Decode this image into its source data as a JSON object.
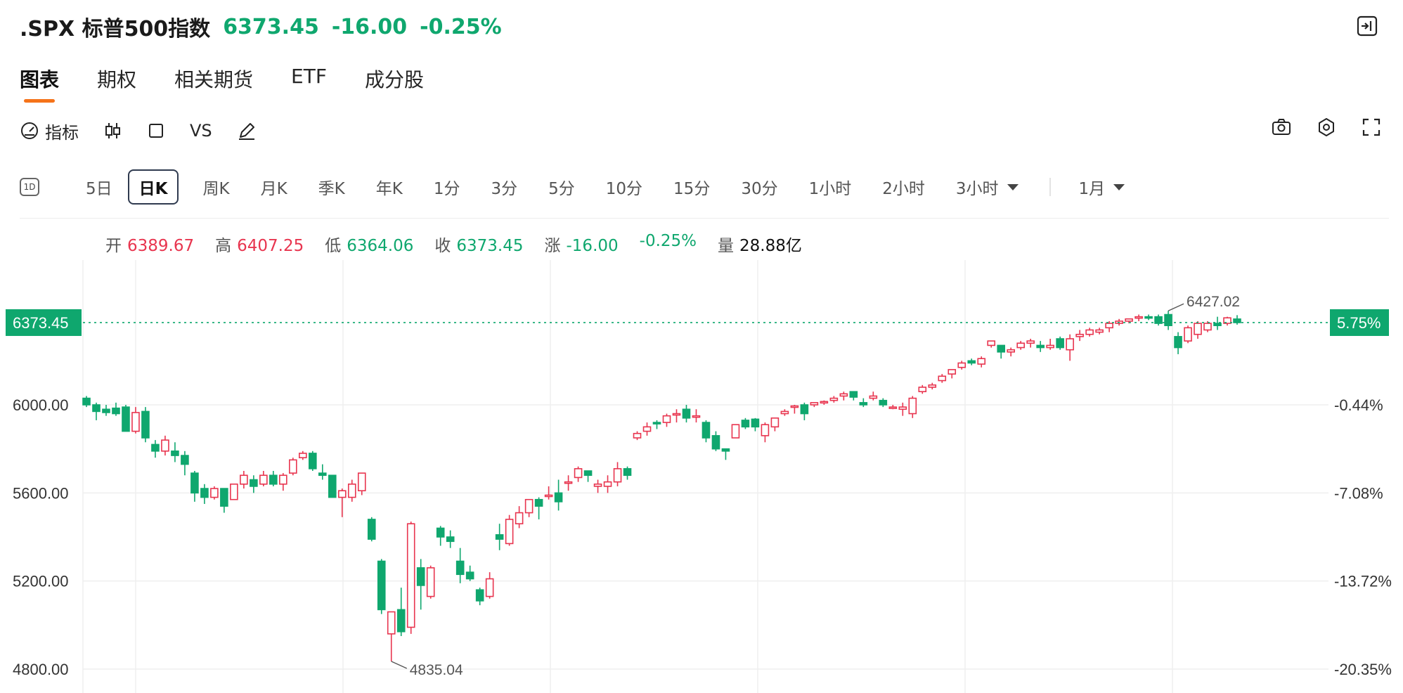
{
  "header": {
    "title": ".SPX 标普500指数",
    "price": "6373.45",
    "change": "-16.00",
    "change_pct": "-0.25%"
  },
  "tabs": [
    {
      "label": "图表",
      "active": true
    },
    {
      "label": "期权",
      "active": false
    },
    {
      "label": "相关期货",
      "active": false
    },
    {
      "label": "ETF",
      "active": false
    },
    {
      "label": "成分股",
      "active": false
    }
  ],
  "toolbar": {
    "indicator_label": "指标",
    "vs_label": "VS"
  },
  "periods": {
    "icon_label": "1D",
    "items": [
      "5日",
      "日K",
      "周K",
      "月K",
      "季K",
      "年K",
      "1分",
      "3分",
      "5分",
      "10分",
      "15分",
      "30分",
      "1小时",
      "2小时",
      "3小时"
    ],
    "active": "日K",
    "range_label": "1月"
  },
  "ohlc": {
    "open_label": "开",
    "open": "6389.67",
    "high_label": "高",
    "high": "6407.25",
    "low_label": "低",
    "low": "6364.06",
    "close_label": "收",
    "close": "6373.45",
    "chg_label": "涨",
    "chg": "-16.00",
    "chg_pct": "-0.25%",
    "vol_label": "量",
    "vol": "28.88亿"
  },
  "colors": {
    "up": "#e8354f",
    "down": "#0fa76e",
    "accent": "#f5731a"
  },
  "chart_data": {
    "type": "candlestick",
    "y_ticks": [
      6000,
      5600,
      5200,
      4800
    ],
    "y_tick_labels": [
      "6000.00",
      "5600.00",
      "5200.00",
      "4800.00"
    ],
    "right_tick_labels": [
      "-0.44%",
      "-7.08%",
      "-13.72%",
      "-20.35%"
    ],
    "current_price_label": "6373.45",
    "current_pct_label": "5.75%",
    "high_marker": "6427.02",
    "low_marker": "4835.04",
    "ylim": [
      4760,
      6520
    ],
    "candles": [
      [
        6030,
        6040,
        5990,
        6000
      ],
      [
        6000,
        6010,
        5930,
        5970
      ],
      [
        5980,
        6000,
        5950,
        5965
      ],
      [
        5985,
        6010,
        5950,
        5960
      ],
      [
        5990,
        6000,
        5880,
        5880
      ],
      [
        5880,
        5990,
        5870,
        5965
      ],
      [
        5970,
        5990,
        5830,
        5850
      ],
      [
        5820,
        5840,
        5760,
        5790
      ],
      [
        5790,
        5860,
        5770,
        5840
      ],
      [
        5790,
        5830,
        5740,
        5770
      ],
      [
        5770,
        5790,
        5680,
        5730
      ],
      [
        5690,
        5700,
        5560,
        5600
      ],
      [
        5620,
        5640,
        5550,
        5580
      ],
      [
        5580,
        5630,
        5570,
        5620
      ],
      [
        5620,
        5620,
        5510,
        5540
      ],
      [
        5570,
        5640,
        5570,
        5640
      ],
      [
        5640,
        5700,
        5620,
        5680
      ],
      [
        5660,
        5680,
        5600,
        5630
      ],
      [
        5640,
        5700,
        5630,
        5680
      ],
      [
        5680,
        5700,
        5630,
        5640
      ],
      [
        5640,
        5690,
        5610,
        5680
      ],
      [
        5690,
        5760,
        5680,
        5750
      ],
      [
        5760,
        5790,
        5750,
        5780
      ],
      [
        5780,
        5790,
        5700,
        5710
      ],
      [
        5690,
        5730,
        5660,
        5680
      ],
      [
        5680,
        5680,
        5580,
        5580
      ],
      [
        5580,
        5620,
        5490,
        5610
      ],
      [
        5580,
        5660,
        5560,
        5640
      ],
      [
        5610,
        5690,
        5590,
        5690
      ],
      [
        5480,
        5490,
        5380,
        5390
      ],
      [
        5290,
        5300,
        5050,
        5070
      ],
      [
        4960,
        5060,
        4835,
        5060
      ],
      [
        5070,
        5170,
        4950,
        4970
      ],
      [
        4990,
        5470,
        4960,
        5460
      ],
      [
        5260,
        5300,
        5070,
        5180
      ],
      [
        5130,
        5270,
        5120,
        5260
      ],
      [
        5440,
        5450,
        5360,
        5400
      ],
      [
        5400,
        5430,
        5350,
        5380
      ],
      [
        5290,
        5350,
        5190,
        5230
      ],
      [
        5240,
        5270,
        5200,
        5210
      ],
      [
        5160,
        5170,
        5090,
        5110
      ],
      [
        5130,
        5240,
        5120,
        5210
      ],
      [
        5410,
        5460,
        5340,
        5390
      ],
      [
        5370,
        5500,
        5360,
        5480
      ],
      [
        5460,
        5540,
        5440,
        5510
      ],
      [
        5510,
        5570,
        5490,
        5570
      ],
      [
        5570,
        5580,
        5480,
        5540
      ],
      [
        5590,
        5630,
        5570,
        5590
      ],
      [
        5600,
        5660,
        5520,
        5560
      ],
      [
        5650,
        5680,
        5610,
        5650
      ],
      [
        5670,
        5720,
        5650,
        5710
      ],
      [
        5700,
        5700,
        5650,
        5680
      ],
      [
        5630,
        5660,
        5600,
        5640
      ],
      [
        5630,
        5680,
        5600,
        5650
      ],
      [
        5650,
        5740,
        5630,
        5710
      ],
      [
        5710,
        5720,
        5660,
        5680
      ],
      [
        5850,
        5880,
        5840,
        5870
      ],
      [
        5880,
        5920,
        5860,
        5900
      ],
      [
        5920,
        5930,
        5890,
        5915
      ],
      [
        5920,
        5960,
        5900,
        5950
      ],
      [
        5960,
        5980,
        5920,
        5960
      ],
      [
        5980,
        6000,
        5920,
        5940
      ],
      [
        5950,
        5980,
        5920,
        5950
      ],
      [
        5920,
        5930,
        5830,
        5850
      ],
      [
        5860,
        5880,
        5790,
        5800
      ],
      [
        5800,
        5800,
        5750,
        5790
      ],
      [
        5850,
        5910,
        5850,
        5910
      ],
      [
        5930,
        5940,
        5890,
        5900
      ],
      [
        5935,
        5940,
        5880,
        5900
      ],
      [
        5860,
        5920,
        5830,
        5910
      ],
      [
        5900,
        5940,
        5880,
        5940
      ],
      [
        5960,
        5980,
        5950,
        5970
      ],
      [
        5990,
        6000,
        5960,
        5995
      ],
      [
        6000,
        6010,
        5930,
        5960
      ],
      [
        6000,
        6010,
        5990,
        6010
      ],
      [
        6010,
        6020,
        6000,
        6015
      ],
      [
        6020,
        6040,
        6010,
        6030
      ],
      [
        6040,
        6060,
        6020,
        6050
      ],
      [
        6060,
        6060,
        6020,
        6035
      ],
      [
        6010,
        6030,
        5990,
        6000
      ],
      [
        6030,
        6060,
        6020,
        6040
      ],
      [
        6020,
        6030,
        5990,
        6000
      ],
      [
        5990,
        6000,
        5980,
        5990
      ],
      [
        5980,
        6010,
        5950,
        5990
      ],
      [
        5960,
        6040,
        5940,
        6030
      ],
      [
        6060,
        6090,
        6050,
        6080
      ],
      [
        6080,
        6100,
        6070,
        6090
      ],
      [
        6110,
        6140,
        6100,
        6130
      ],
      [
        6140,
        6160,
        6120,
        6160
      ],
      [
        6170,
        6200,
        6160,
        6190
      ],
      [
        6200,
        6210,
        6180,
        6190
      ],
      [
        6185,
        6220,
        6170,
        6210
      ],
      [
        6270,
        6290,
        6260,
        6290
      ],
      [
        6270,
        6270,
        6210,
        6240
      ],
      [
        6240,
        6260,
        6220,
        6250
      ],
      [
        6260,
        6290,
        6250,
        6280
      ],
      [
        6280,
        6300,
        6260,
        6290
      ],
      [
        6270,
        6290,
        6240,
        6260
      ],
      [
        6260,
        6300,
        6250,
        6270
      ],
      [
        6300,
        6310,
        6250,
        6260
      ],
      [
        6250,
        6320,
        6200,
        6300
      ],
      [
        6310,
        6340,
        6290,
        6320
      ],
      [
        6320,
        6350,
        6310,
        6340
      ],
      [
        6330,
        6350,
        6320,
        6340
      ],
      [
        6350,
        6380,
        6330,
        6370
      ],
      [
        6370,
        6390,
        6360,
        6380
      ],
      [
        6380,
        6390,
        6370,
        6390
      ],
      [
        6395,
        6410,
        6380,
        6400
      ],
      [
        6400,
        6410,
        6385,
        6395
      ],
      [
        6400,
        6410,
        6360,
        6370
      ],
      [
        6410,
        6427,
        6340,
        6360
      ],
      [
        6310,
        6330,
        6230,
        6260
      ],
      [
        6290,
        6360,
        6280,
        6350
      ],
      [
        6320,
        6380,
        6300,
        6370
      ],
      [
        6340,
        6380,
        6330,
        6370
      ],
      [
        6370,
        6400,
        6340,
        6360
      ],
      [
        6370,
        6400,
        6360,
        6395
      ],
      [
        6389.67,
        6407.25,
        6364.06,
        6373.45
      ]
    ]
  }
}
